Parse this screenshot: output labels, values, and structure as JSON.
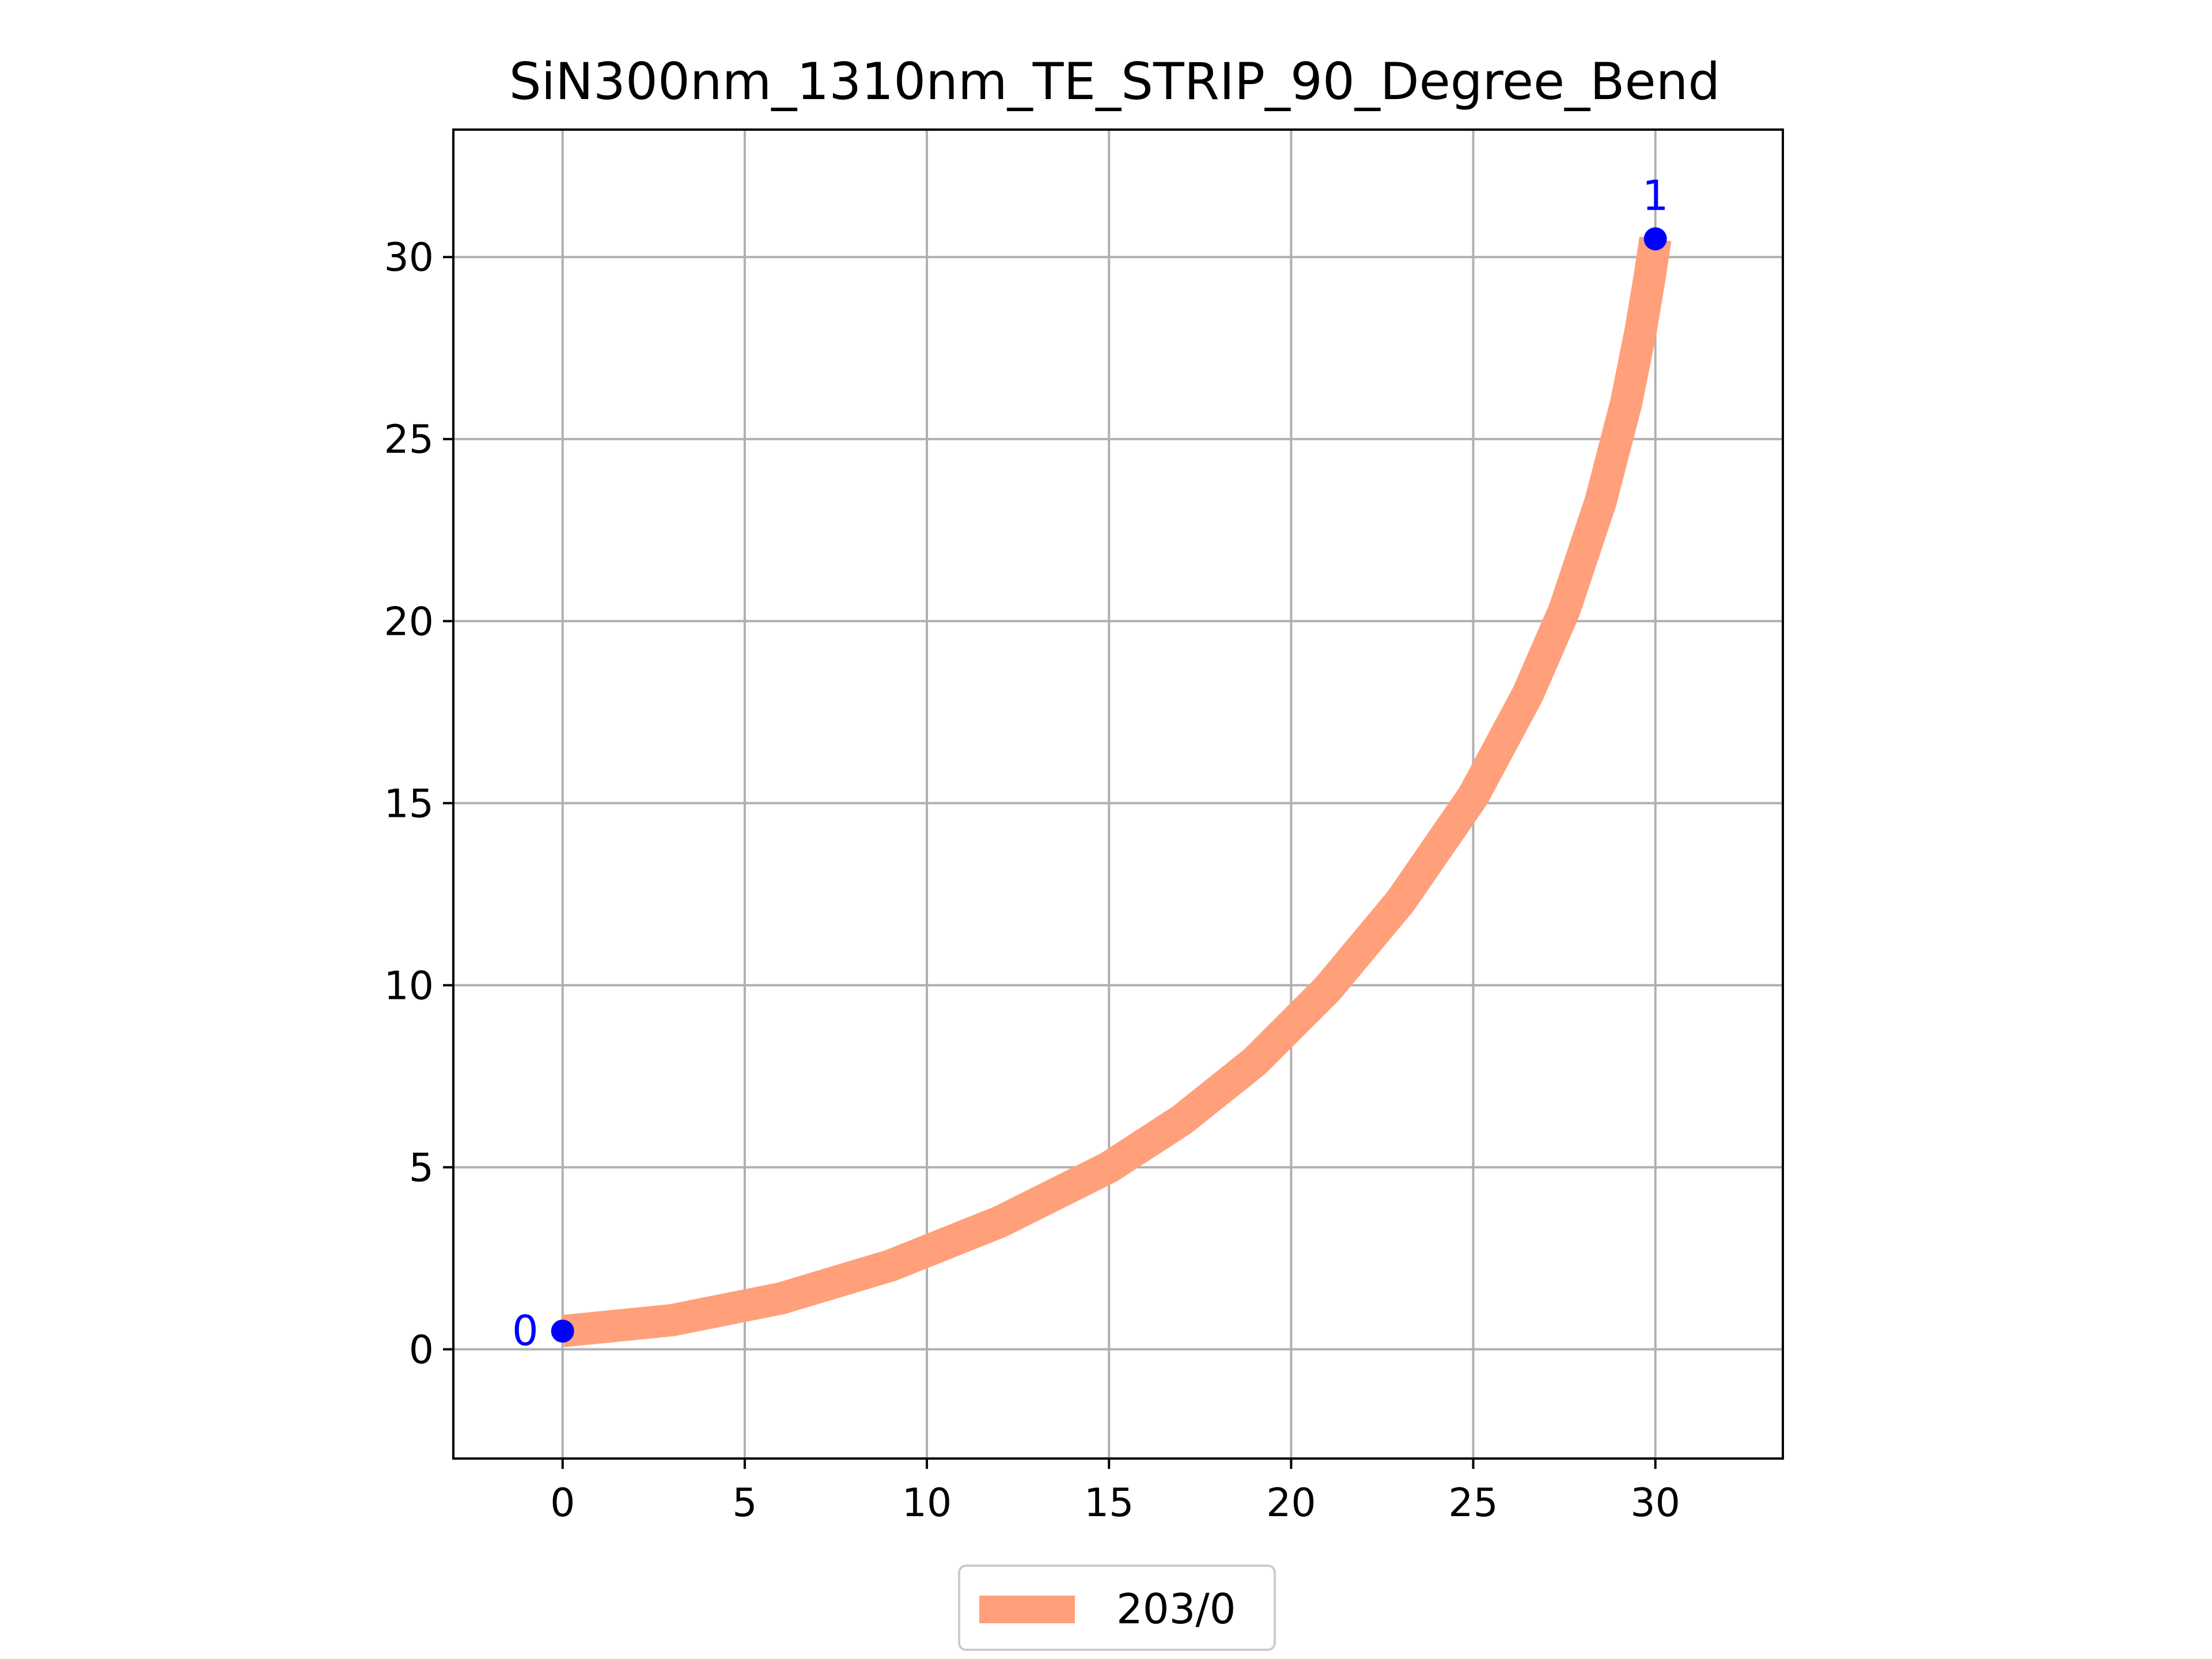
{
  "chart_data": {
    "type": "line",
    "title": "SiN300nm_1310nm_TE_STRIP_90_Degree_Bend",
    "xlabel": "",
    "ylabel": "",
    "xlim": [
      -3,
      33.5
    ],
    "ylim": [
      -3,
      33.5
    ],
    "xticks": [
      0,
      5,
      10,
      15,
      20,
      25,
      30
    ],
    "yticks": [
      0,
      5,
      10,
      15,
      20,
      25,
      30
    ],
    "xtick_labels": [
      "0",
      "5",
      "10",
      "15",
      "20",
      "25",
      "30"
    ],
    "ytick_labels": [
      "0",
      "5",
      "10",
      "15",
      "20",
      "25",
      "30"
    ],
    "grid": true,
    "legend_placement": "bottom-center",
    "series": [
      {
        "name": "203/0",
        "color": "#ffa07a",
        "x": [
          0,
          3,
          6,
          9,
          12,
          15,
          17,
          19,
          21,
          23,
          25,
          26.5,
          27.5,
          28.5,
          29.2,
          29.6,
          29.85,
          30
        ],
        "y": [
          0.5,
          0.8,
          1.4,
          2.3,
          3.5,
          5.0,
          6.3,
          7.9,
          9.9,
          12.3,
          15.2,
          18.0,
          20.3,
          23.3,
          26.0,
          28.0,
          29.5,
          30.5
        ]
      }
    ],
    "ports": [
      {
        "label": "0",
        "x": 0,
        "y": 0.5,
        "color": "#0000ff"
      },
      {
        "label": "1",
        "x": 30,
        "y": 30.5,
        "color": "#0000ff"
      }
    ],
    "legend": [
      {
        "label": "203/0",
        "color": "#ffa07a"
      }
    ]
  },
  "colors": {
    "grid": "#b0b0b0",
    "axes": "#000000",
    "port": "#0000ff",
    "waveguide": "#ffa07a"
  }
}
